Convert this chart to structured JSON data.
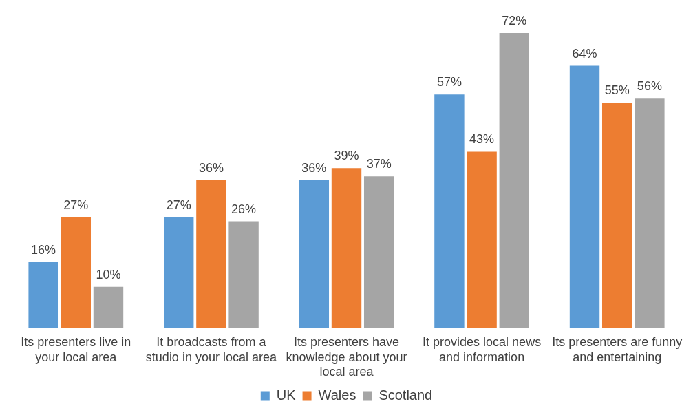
{
  "chart_data": {
    "type": "bar",
    "categories": [
      "Its presenters live in your local area",
      "It broadcasts from a studio in your local area",
      "Its presenters have knowledge about your local area",
      "It provides local news and information",
      "Its presenters are funny and entertaining"
    ],
    "series": [
      {
        "name": "UK",
        "color": "#5b9bd5",
        "values": [
          16,
          27,
          36,
          57,
          64
        ],
        "value_labels": [
          "16%",
          "27%",
          "36%",
          "57%",
          "64%"
        ]
      },
      {
        "name": "Wales",
        "color": "#ed7d31",
        "values": [
          27,
          36,
          39,
          43,
          55
        ],
        "value_labels": [
          "27%",
          "36%",
          "39%",
          "43%",
          "55%"
        ]
      },
      {
        "name": "Scotland",
        "color": "#a5a5a5",
        "values": [
          10,
          26,
          37,
          72,
          56
        ],
        "value_labels": [
          "10%",
          "26%",
          "37%",
          "72%",
          "56%"
        ]
      }
    ],
    "ylim": [
      0,
      72
    ],
    "tick_labels": "x",
    "grid": false,
    "legend": "bottom"
  }
}
